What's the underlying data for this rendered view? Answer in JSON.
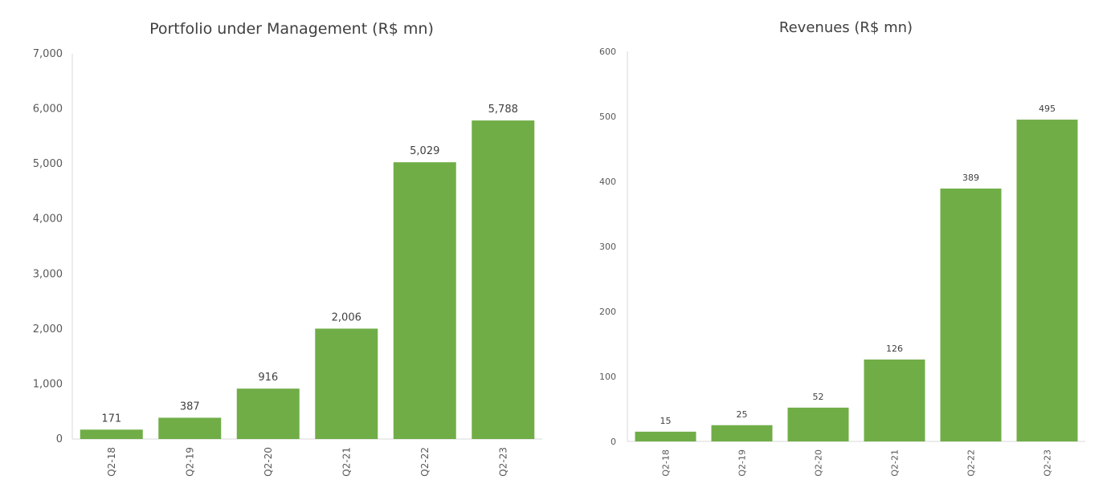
{
  "chart_data": [
    {
      "type": "bar",
      "title": "Portfolio under Management (R$ mn)",
      "categories": [
        "Q2-18",
        "Q2-19",
        "Q2-20",
        "Q2-21",
        "Q2-22",
        "Q2-23"
      ],
      "values": [
        171,
        387,
        916,
        2006,
        5029,
        5788
      ],
      "value_labels": [
        "171",
        "387",
        "916",
        "2,006",
        "5,029",
        "5,788"
      ],
      "ylim": [
        0,
        7000
      ],
      "yticks": [
        0,
        1000,
        2000,
        3000,
        4000,
        5000,
        6000,
        7000
      ],
      "ytick_labels": [
        "0",
        "1,000",
        "2,000",
        "3,000",
        "4,000",
        "5,000",
        "6,000",
        "7,000"
      ],
      "xlabel": "",
      "ylabel": "",
      "grid": false,
      "bar_color": "#70ad47"
    },
    {
      "type": "bar",
      "title": "Revenues (R$ mn)",
      "categories": [
        "Q2-18",
        "Q2-19",
        "Q2-20",
        "Q2-21",
        "Q2-22",
        "Q2-23"
      ],
      "values": [
        15,
        25,
        52,
        126,
        389,
        495
      ],
      "value_labels": [
        "15",
        "25",
        "52",
        "126",
        "389",
        "495"
      ],
      "ylim": [
        0,
        600
      ],
      "yticks": [
        0,
        100,
        200,
        300,
        400,
        500,
        600
      ],
      "ytick_labels": [
        "0",
        "100",
        "200",
        "300",
        "400",
        "500",
        "600"
      ],
      "xlabel": "",
      "ylabel": "",
      "grid": false,
      "bar_color": "#70ad47"
    }
  ]
}
